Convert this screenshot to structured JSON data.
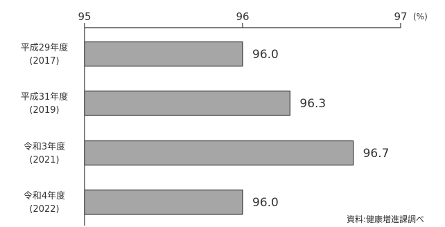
{
  "chart_data": {
    "type": "bar",
    "orientation": "horizontal",
    "categories": [
      {
        "line1": "平成29年度",
        "line2": "(2017)"
      },
      {
        "line1": "平成31年度",
        "line2": "(2019)"
      },
      {
        "line1": "令和3年度",
        "line2": "(2021)"
      },
      {
        "line1": "令和4年度",
        "line2": "(2022)"
      }
    ],
    "values": [
      96.0,
      96.3,
      96.7,
      96.0
    ],
    "value_labels": [
      "96.0",
      "96.3",
      "96.7",
      "96.0"
    ],
    "xlim": [
      95,
      97
    ],
    "xticks": [
      95,
      96,
      97
    ],
    "xtick_labels": [
      "95",
      "96",
      "97"
    ],
    "unit": "(%)",
    "source": "資料:健康増進課調べ",
    "axis_position": "top",
    "grid": false,
    "colors": {
      "bar_fill": "#a6a6a6",
      "bar_stroke": "#333333",
      "axis": "#333333",
      "text": "#333333"
    }
  }
}
